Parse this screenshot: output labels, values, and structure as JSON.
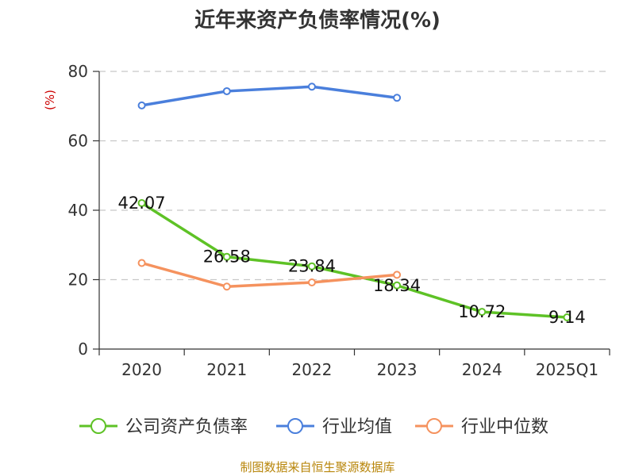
{
  "chart_data": {
    "type": "line",
    "title": "近年来资产负债率情况(%)",
    "ylabel": "(%)",
    "xlabel": "",
    "ylim": [
      0,
      80
    ],
    "yticks": [
      0,
      20,
      40,
      60,
      80
    ],
    "categories": [
      "2020",
      "2021",
      "2022",
      "2023",
      "2024",
      "2025Q1"
    ],
    "grid": true,
    "legend_position": "bottom",
    "series": [
      {
        "name": "公司资产负债率",
        "color": "#5ec226",
        "values": [
          42.07,
          26.58,
          23.84,
          18.34,
          10.72,
          9.14
        ],
        "labels": [
          "42.07",
          "26.58",
          "23.84",
          "18.34",
          "10.72",
          "9.14"
        ]
      },
      {
        "name": "行业均值",
        "color": "#4a7fdc",
        "values": [
          70.2,
          74.3,
          75.6,
          72.4,
          null,
          null
        ]
      },
      {
        "name": "行业中位数",
        "color": "#f5925e",
        "values": [
          24.8,
          18.0,
          19.2,
          21.4,
          null,
          null
        ]
      }
    ]
  },
  "source": "制图数据来自恒生聚源数据库"
}
